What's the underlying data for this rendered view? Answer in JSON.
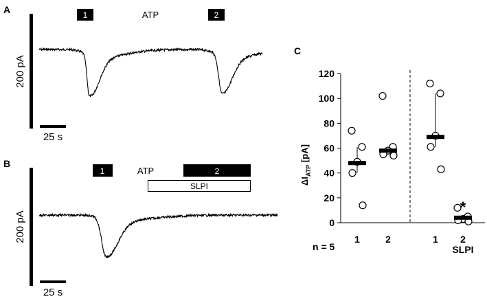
{
  "figure": {
    "panels": {
      "A": {
        "letter": "A",
        "label_1": "1",
        "label_2": "2",
        "atp_label": "ATP",
        "scale_y": "200 pA",
        "scale_x": "25 s"
      },
      "B": {
        "letter": "B",
        "label_1": "1",
        "label_2": "2",
        "atp_label": "ATP",
        "slpi_label": "SLPI",
        "scale_y": "200 pA",
        "scale_x": "25 s"
      },
      "C": {
        "letter": "C",
        "n_label": "n = 5",
        "slpi_label": "SLPI",
        "significance": "*"
      }
    }
  },
  "chart_data": {
    "type": "scatter",
    "ylabel_main": "ΔI",
    "ylabel_sub": "ATP",
    "ylabel_unit": "[pA]",
    "ylim": [
      0,
      120
    ],
    "yticks": [
      0,
      20,
      40,
      60,
      80,
      100,
      120
    ],
    "categories": [
      "1",
      "2",
      "1",
      "2"
    ],
    "groups": [
      {
        "x_label": "1",
        "points": [
          74,
          61,
          49,
          40,
          14
        ],
        "median": 48,
        "q1": 40,
        "q3": 61
      },
      {
        "x_label": "2",
        "points": [
          102,
          61,
          58,
          55,
          54
        ],
        "median": 58,
        "q1": 55,
        "q3": 61
      },
      {
        "x_label": "1",
        "points": [
          112,
          104,
          70,
          61,
          43
        ],
        "median": 69,
        "q1": 61,
        "q3": 104
      },
      {
        "x_label": "2",
        "points": [
          12,
          5,
          3,
          2,
          1
        ],
        "median": 4,
        "q1": 2,
        "q3": 5
      }
    ],
    "divider": "dashed line between group 2 and group 3"
  }
}
